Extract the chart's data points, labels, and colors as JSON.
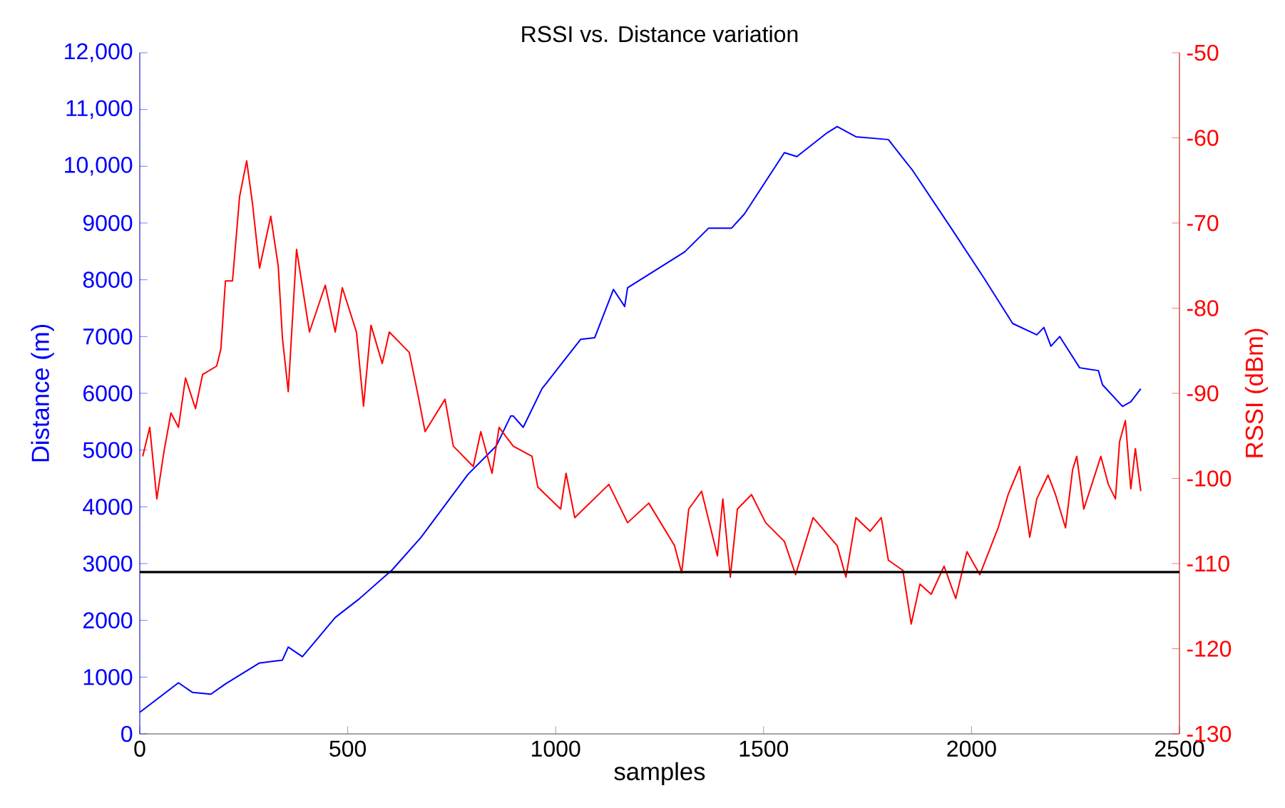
{
  "chart_data": {
    "type": "line",
    "title": "RSSI vs. Distance variation",
    "xlabel": "samples",
    "ylabel": "Distance (m)",
    "y2label": "RSSI (dBm)",
    "xlim": [
      0,
      2500
    ],
    "xticks": [
      0,
      500,
      1000,
      1500,
      2000,
      2500
    ],
    "ylim": [
      0,
      12000
    ],
    "yticks": [
      0,
      1000,
      2000,
      3000,
      4000,
      5000,
      6000,
      7000,
      8000,
      9000,
      {
        "value": 10000,
        "label": "10,000"
      },
      {
        "value": 11000,
        "label": "11,000"
      },
      {
        "value": 12000,
        "label": "12,000"
      }
    ],
    "y2lim": [
      -130,
      -50
    ],
    "y2ticks": [
      -130,
      -120,
      -110,
      -100,
      -90,
      -80,
      -70,
      -60,
      -50
    ],
    "grid": false,
    "marker": "none",
    "line_style": "solid",
    "series": [
      {
        "color": "#0000ff",
        "x": [
          0,
          93,
          127,
          171,
          206,
          288,
          343,
          357,
          391,
          470,
          528,
          607,
          676,
          789,
          857,
          892,
          898,
          922,
          967,
          1060,
          1094,
          1139,
          1166,
          1173,
          1310,
          1368,
          1423,
          1454,
          1550,
          1580,
          1653,
          1677,
          1722,
          1800,
          1859,
          1951,
          2030,
          2099,
          2157,
          2174,
          2191,
          2212,
          2260,
          2305,
          2315,
          2363,
          2383,
          2407
        ],
        "values": [
          380,
          900,
          730,
          700,
          880,
          1250,
          1300,
          1530,
          1360,
          2050,
          2380,
          2890,
          3460,
          4570,
          5070,
          5600,
          5600,
          5400,
          6080,
          6950,
          6980,
          7830,
          7530,
          7860,
          8490,
          8910,
          8910,
          9160,
          10240,
          10170,
          10590,
          10700,
          10520,
          10470,
          9920,
          8910,
          8030,
          7230,
          7030,
          7160,
          6830,
          7000,
          6450,
          6400,
          6150,
          5770,
          5850,
          6080
        ]
      },
      {
        "color": "#ff0000",
        "axis": "y2",
        "x": [
          7,
          24,
          41,
          58,
          75,
          93,
          110,
          134,
          151,
          185,
          195,
          206,
          223,
          240,
          257,
          271,
          288,
          315,
          333,
          343,
          357,
          377,
          408,
          446,
          470,
          487,
          521,
          538,
          556,
          583,
          600,
          648,
          669,
          686,
          734,
          754,
          802,
          820,
          847,
          864,
          898,
          943,
          957,
          1012,
          1025,
          1046,
          1128,
          1173,
          1224,
          1286,
          1303,
          1320,
          1351,
          1389,
          1402,
          1420,
          1437,
          1471,
          1505,
          1550,
          1577,
          1619,
          1677,
          1698,
          1722,
          1756,
          1783,
          1800,
          1835,
          1855,
          1876,
          1903,
          1934,
          1962,
          1989,
          2020,
          2064,
          2088,
          2116,
          2140,
          2157,
          2184,
          2202,
          2226,
          2243,
          2253,
          2270,
          2311,
          2329,
          2346,
          2356,
          2370,
          2383,
          2394,
          2407
        ],
        "values": [
          -97.4,
          -94.0,
          -102.4,
          -96.9,
          -92.3,
          -94.0,
          -88.2,
          -91.8,
          -87.8,
          -86.8,
          -84.8,
          -76.8,
          -76.8,
          -66.9,
          -62.7,
          -67.7,
          -75.3,
          -69.2,
          -75.1,
          -83.5,
          -89.8,
          -73.1,
          -82.8,
          -77.3,
          -82.8,
          -77.6,
          -82.8,
          -91.5,
          -82.0,
          -86.5,
          -82.8,
          -85.2,
          -90.2,
          -94.5,
          -90.7,
          -96.2,
          -98.6,
          -94.5,
          -99.4,
          -94.0,
          -96.2,
          -97.4,
          -101.0,
          -103.6,
          -99.4,
          -104.6,
          -100.7,
          -105.2,
          -102.9,
          -107.9,
          -111.1,
          -103.6,
          -101.5,
          -109.1,
          -102.4,
          -111.6,
          -103.6,
          -101.9,
          -105.2,
          -107.4,
          -111.3,
          -104.6,
          -107.9,
          -111.6,
          -104.6,
          -106.2,
          -104.6,
          -109.6,
          -110.8,
          -117.1,
          -112.4,
          -113.6,
          -110.3,
          -114.1,
          -108.6,
          -111.3,
          -105.8,
          -101.9,
          -98.6,
          -106.9,
          -102.4,
          -99.6,
          -101.9,
          -105.8,
          -99.0,
          -97.4,
          -103.6,
          -97.4,
          -100.7,
          -102.4,
          -95.7,
          -93.2,
          -101.2,
          -96.5,
          -101.5
        ]
      }
    ],
    "ref_lines": [
      {
        "axis": "y2",
        "value": -111,
        "color": "#000000"
      }
    ]
  }
}
